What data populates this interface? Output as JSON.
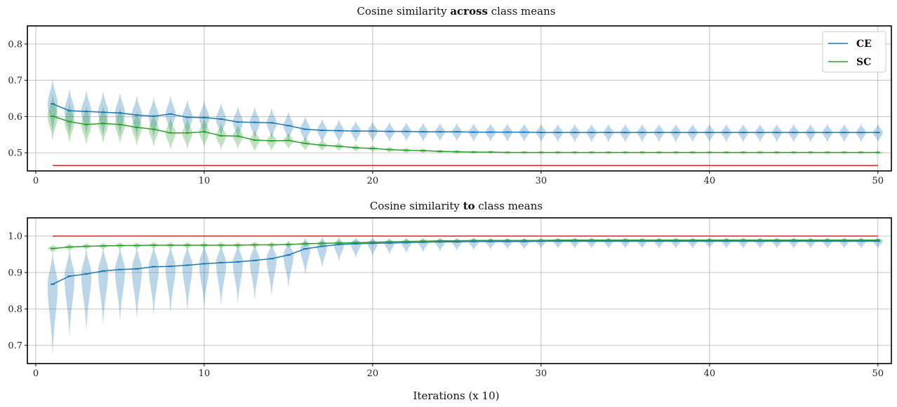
{
  "chart_data": [
    {
      "type": "line",
      "title_parts": [
        "Cosine similarity ",
        "across",
        " class means"
      ],
      "xlabel": "",
      "ylabel": "",
      "xlim": [
        -0.5,
        50.8
      ],
      "ylim": [
        0.45,
        0.85
      ],
      "xticks": [
        0,
        10,
        20,
        30,
        40,
        50
      ],
      "yticks": [
        0.5,
        0.6,
        0.7,
        0.8
      ],
      "ytick_labels": [
        "0.5",
        "0.6",
        "0.7",
        "0.8"
      ],
      "grid": true,
      "legend": {
        "placement": "top-right",
        "entries": [
          "CE",
          "SC"
        ]
      },
      "x": [
        1,
        2,
        3,
        4,
        5,
        6,
        7,
        8,
        9,
        10,
        11,
        12,
        13,
        14,
        15,
        16,
        17,
        18,
        19,
        20,
        21,
        22,
        23,
        24,
        25,
        26,
        27,
        28,
        29,
        30,
        31,
        32,
        33,
        34,
        35,
        36,
        37,
        38,
        39,
        40,
        41,
        42,
        43,
        44,
        45,
        46,
        47,
        48,
        49,
        50
      ],
      "series": [
        {
          "name": "CE",
          "color": "#1f77b4",
          "values": [
            0.635,
            0.616,
            0.614,
            0.612,
            0.61,
            0.604,
            0.601,
            0.607,
            0.598,
            0.597,
            0.593,
            0.585,
            0.584,
            0.583,
            0.575,
            0.565,
            0.562,
            0.561,
            0.56,
            0.56,
            0.559,
            0.559,
            0.558,
            0.558,
            0.558,
            0.557,
            0.557,
            0.557,
            0.557,
            0.556,
            0.556,
            0.556,
            0.556,
            0.556,
            0.556,
            0.556,
            0.556,
            0.556,
            0.556,
            0.556,
            0.556,
            0.556,
            0.556,
            0.556,
            0.556,
            0.556,
            0.556,
            0.556,
            0.556,
            0.556
          ],
          "spread": [
            0.08,
            0.07,
            0.068,
            0.066,
            0.064,
            0.062,
            0.06,
            0.058,
            0.056,
            0.054,
            0.052,
            0.05,
            0.048,
            0.046,
            0.044,
            0.04,
            0.036,
            0.034,
            0.032,
            0.03,
            0.029,
            0.028,
            0.028,
            0.027,
            0.027,
            0.027,
            0.027,
            0.027,
            0.027,
            0.027,
            0.027,
            0.027,
            0.027,
            0.027,
            0.027,
            0.027,
            0.027,
            0.027,
            0.027,
            0.027,
            0.027,
            0.027,
            0.027,
            0.027,
            0.027,
            0.027,
            0.027,
            0.027,
            0.027,
            0.027
          ]
        },
        {
          "name": "SC",
          "color": "#2ca02c",
          "values": [
            0.601,
            0.586,
            0.578,
            0.581,
            0.578,
            0.57,
            0.565,
            0.555,
            0.555,
            0.558,
            0.547,
            0.546,
            0.535,
            0.533,
            0.534,
            0.526,
            0.521,
            0.518,
            0.514,
            0.512,
            0.509,
            0.507,
            0.506,
            0.504,
            0.503,
            0.502,
            0.502,
            0.501,
            0.501,
            0.501,
            0.501,
            0.501,
            0.501,
            0.501,
            0.501,
            0.501,
            0.501,
            0.501,
            0.501,
            0.501,
            0.501,
            0.501,
            0.501,
            0.501,
            0.501,
            0.501,
            0.501,
            0.501,
            0.501,
            0.501
          ],
          "spread": [
            0.07,
            0.06,
            0.058,
            0.056,
            0.054,
            0.052,
            0.05,
            0.048,
            0.046,
            0.044,
            0.04,
            0.036,
            0.032,
            0.028,
            0.024,
            0.02,
            0.016,
            0.013,
            0.011,
            0.01,
            0.009,
            0.008,
            0.007,
            0.006,
            0.006,
            0.005,
            0.005,
            0.005,
            0.005,
            0.005,
            0.005,
            0.005,
            0.005,
            0.005,
            0.005,
            0.005,
            0.005,
            0.005,
            0.005,
            0.005,
            0.005,
            0.005,
            0.005,
            0.005,
            0.005,
            0.005,
            0.005,
            0.005,
            0.005,
            0.005
          ]
        }
      ],
      "reference_line": {
        "value": 0.465,
        "color": "#d62728"
      }
    },
    {
      "type": "line",
      "title_parts": [
        "Cosine similarity ",
        "to",
        " class means"
      ],
      "xlabel": "Iterations (x 10)",
      "ylabel": "",
      "xlim": [
        -0.5,
        50.8
      ],
      "ylim": [
        0.65,
        1.05
      ],
      "xticks": [
        0,
        10,
        20,
        30,
        40,
        50
      ],
      "yticks": [
        0.7,
        0.8,
        0.9,
        1.0
      ],
      "ytick_labels": [
        "0.7",
        "0.8",
        "0.9",
        "1.0"
      ],
      "grid": true,
      "x": [
        1,
        2,
        3,
        4,
        5,
        6,
        7,
        8,
        9,
        10,
        11,
        12,
        13,
        14,
        15,
        16,
        17,
        18,
        19,
        20,
        21,
        22,
        23,
        24,
        25,
        26,
        27,
        28,
        29,
        30,
        31,
        32,
        33,
        34,
        35,
        36,
        37,
        38,
        39,
        40,
        41,
        42,
        43,
        44,
        45,
        46,
        47,
        48,
        49,
        50
      ],
      "series": [
        {
          "name": "CE",
          "color": "#1f77b4",
          "values": [
            0.868,
            0.89,
            0.896,
            0.904,
            0.908,
            0.91,
            0.916,
            0.917,
            0.92,
            0.924,
            0.927,
            0.929,
            0.933,
            0.938,
            0.948,
            0.965,
            0.972,
            0.977,
            0.979,
            0.98,
            0.981,
            0.982,
            0.983,
            0.984,
            0.984,
            0.985,
            0.985,
            0.985,
            0.985,
            0.986,
            0.986,
            0.986,
            0.986,
            0.986,
            0.986,
            0.986,
            0.986,
            0.986,
            0.986,
            0.986,
            0.986,
            0.986,
            0.986,
            0.986,
            0.986,
            0.986,
            0.986,
            0.986,
            0.986,
            0.986
          ],
          "spread": [
            0.1,
            0.085,
            0.08,
            0.075,
            0.072,
            0.07,
            0.068,
            0.066,
            0.064,
            0.062,
            0.06,
            0.058,
            0.055,
            0.052,
            0.046,
            0.036,
            0.03,
            0.024,
            0.02,
            0.018,
            0.016,
            0.015,
            0.014,
            0.013,
            0.012,
            0.012,
            0.011,
            0.011,
            0.011,
            0.01,
            0.01,
            0.01,
            0.01,
            0.01,
            0.01,
            0.01,
            0.01,
            0.01,
            0.01,
            0.01,
            0.01,
            0.01,
            0.01,
            0.01,
            0.01,
            0.01,
            0.01,
            0.01,
            0.01,
            0.01
          ]
        },
        {
          "name": "SC",
          "color": "#2ca02c",
          "values": [
            0.966,
            0.97,
            0.972,
            0.973,
            0.974,
            0.974,
            0.975,
            0.975,
            0.975,
            0.975,
            0.975,
            0.975,
            0.976,
            0.976,
            0.977,
            0.979,
            0.98,
            0.981,
            0.982,
            0.983,
            0.984,
            0.985,
            0.986,
            0.987,
            0.987,
            0.988,
            0.988,
            0.988,
            0.988,
            0.988,
            0.989,
            0.989,
            0.989,
            0.989,
            0.989,
            0.989,
            0.989,
            0.989,
            0.989,
            0.989,
            0.989,
            0.989,
            0.989,
            0.989,
            0.989,
            0.989,
            0.989,
            0.989,
            0.989,
            0.989
          ],
          "spread": [
            0.012,
            0.011,
            0.01,
            0.01,
            0.01,
            0.01,
            0.01,
            0.01,
            0.01,
            0.01,
            0.01,
            0.01,
            0.01,
            0.009,
            0.009,
            0.009,
            0.008,
            0.008,
            0.008,
            0.007,
            0.007,
            0.007,
            0.006,
            0.006,
            0.006,
            0.006,
            0.006,
            0.006,
            0.006,
            0.006,
            0.006,
            0.006,
            0.006,
            0.006,
            0.006,
            0.006,
            0.006,
            0.006,
            0.006,
            0.006,
            0.006,
            0.006,
            0.006,
            0.006,
            0.006,
            0.006,
            0.006,
            0.006,
            0.006,
            0.006
          ]
        }
      ],
      "reference_line": {
        "value": 1.0,
        "color": "#d62728"
      }
    }
  ]
}
